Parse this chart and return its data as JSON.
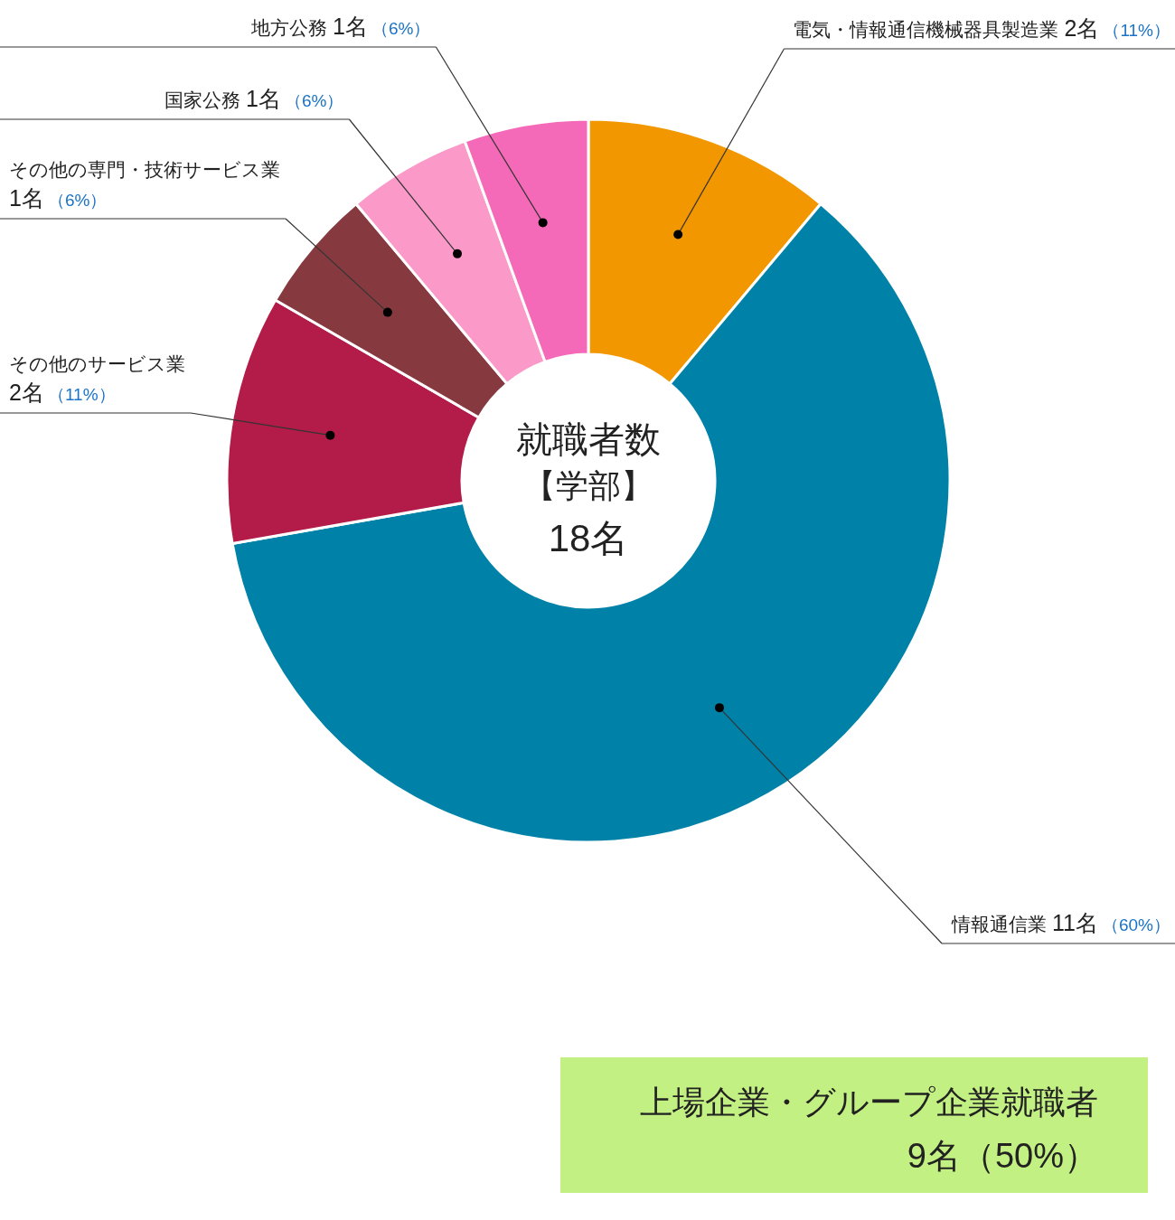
{
  "chart_data": {
    "type": "donut",
    "title": "就職者数",
    "subtitle": "【学部】",
    "categories": [
      "電気・情報通信機械器具製造業",
      "情報通信業",
      "その他のサービス業",
      "その他の専門・技術サービス業",
      "国家公務",
      "地方公務"
    ],
    "values": [
      2,
      11,
      2,
      1,
      1,
      1
    ],
    "colors": [
      "#f39700",
      "#0082a8",
      "#b31c48",
      "#863a40",
      "#fb99c8",
      "#f56ab8"
    ],
    "value_labels": [
      "2名（11%）",
      "11名（60%）",
      "2名（11%）",
      "1名（6%）",
      "1名（6%）",
      "1名（6%）"
    ],
    "annotations": [
      "18名",
      "上場企業・グループ企業就職者",
      "9名（50%）"
    ]
  }
}
